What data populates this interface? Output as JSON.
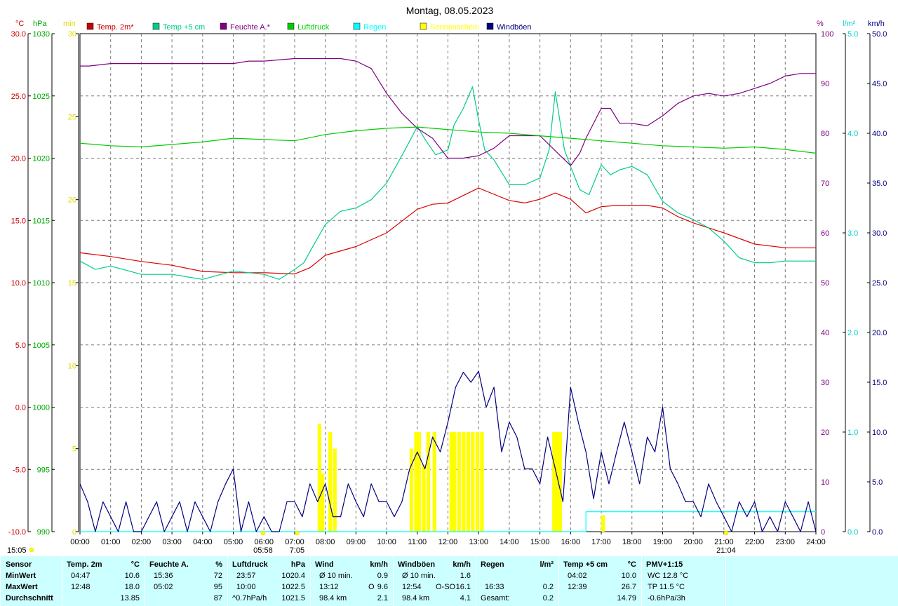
{
  "chart_data": {
    "type": "line",
    "title": "Montag, 08.05.2023",
    "x_axis": {
      "range_hours": [
        0,
        24
      ],
      "tick_labels": [
        "00:00",
        "01:00",
        "02:00",
        "03:00",
        "04:00",
        "05:00",
        "06:00",
        "07:00",
        "08:00",
        "09:00",
        "10:00",
        "11:00",
        "12:00",
        "13:00",
        "14:00",
        "15:00",
        "16:00",
        "17:00",
        "18:00",
        "19:00",
        "20:00",
        "21:00",
        "22:00",
        "23:00",
        "24:00"
      ],
      "annotations": [
        {
          "label": "05:58",
          "hour": 5.97
        },
        {
          "label": "7:05",
          "hour": 7.08
        },
        {
          "label": "21:04",
          "hour": 21.07
        }
      ],
      "sun_left_label": "15:05"
    },
    "axes": {
      "temp": {
        "unit": "°C",
        "range": [
          -10,
          30
        ],
        "ticks": [
          "30.0",
          "25.0",
          "20.0",
          "15.0",
          "10.0",
          "5.0",
          "0.0",
          "-5.0",
          "-10.0"
        ],
        "color": "#cc0000"
      },
      "pressure": {
        "unit": "hPa",
        "range": [
          990,
          1030
        ],
        "ticks": [
          "1030",
          "1025",
          "1020",
          "1015",
          "1010",
          "1005",
          "1000",
          "995",
          "990"
        ],
        "color": "#00aa00"
      },
      "sunshine": {
        "unit": "min",
        "range": [
          0,
          30
        ],
        "ticks": [
          "30",
          "25",
          "20",
          "15",
          "10",
          "5",
          "0"
        ],
        "color": "#dddd00"
      },
      "humidity": {
        "unit": "%",
        "range": [
          0,
          100
        ],
        "ticks": [
          "100",
          "90",
          "80",
          "70",
          "60",
          "50",
          "40",
          "30",
          "20",
          "10",
          "0"
        ],
        "color": "#800080"
      },
      "rain": {
        "unit": "l/m²",
        "range": [
          0,
          5
        ],
        "ticks": [
          "5.0",
          "4.0",
          "3.0",
          "2.0",
          "1.0",
          "0.0"
        ],
        "color": "#00cccc"
      },
      "wind": {
        "unit": "km/h",
        "range": [
          0,
          50
        ],
        "ticks": [
          "50.0",
          "45.0",
          "40.0",
          "35.0",
          "30.0",
          "25.0",
          "20.0",
          "15.0",
          "10.0",
          "5.0",
          "0.0"
        ],
        "color": "#000080"
      }
    },
    "legend": {
      "placement": "top",
      "items": [
        {
          "name": "Temp. 2m*",
          "color": "#cc0000"
        },
        {
          "name": "Temp +5 cm",
          "color": "#00cc88"
        },
        {
          "name": "Feuchte A.*",
          "color": "#800080"
        },
        {
          "name": "Luftdruck",
          "color": "#00cc00"
        },
        {
          "name": "Regen",
          "color": "#00ffff"
        },
        {
          "name": "Sonnenschein",
          "color": "#ffff00"
        },
        {
          "name": "Windböen",
          "color": "#000080"
        }
      ]
    },
    "series": [
      {
        "name": "Temp. 2m*",
        "axis": "temp",
        "color": "#dd0000",
        "x": [
          0,
          1,
          2,
          3,
          4,
          5,
          6,
          7,
          7.5,
          8,
          9,
          10,
          11,
          11.5,
          12,
          12.5,
          13,
          13.5,
          14,
          14.5,
          15,
          15.5,
          16,
          16.5,
          17,
          17.5,
          18,
          18.5,
          19,
          19.5,
          20,
          21,
          22,
          23,
          24
        ],
        "y": [
          12.4,
          12.1,
          11.7,
          11.4,
          10.9,
          10.8,
          10.8,
          10.7,
          11.2,
          12.2,
          12.9,
          14.0,
          15.9,
          16.3,
          16.4,
          17.0,
          17.6,
          17.1,
          16.6,
          16.4,
          16.7,
          17.2,
          16.7,
          15.6,
          16.1,
          16.2,
          16.2,
          16.2,
          16.0,
          15.3,
          14.8,
          14.0,
          13.1,
          12.8,
          12.8
        ]
      },
      {
        "name": "Temp +5 cm",
        "axis": "sunshine",
        "color": "#00cc88",
        "x": [
          0,
          0.5,
          1,
          2,
          3,
          4,
          5,
          6,
          6.5,
          7,
          7.3,
          7.6,
          8,
          8.5,
          9,
          9.5,
          10,
          10.3,
          10.6,
          11,
          11.3,
          11.6,
          12,
          12.2,
          12.5,
          12.8,
          13,
          13.2,
          13.5,
          14,
          14.5,
          15,
          15.3,
          15.5,
          15.8,
          16,
          16.3,
          16.6,
          17,
          17.3,
          17.6,
          18,
          18.5,
          19,
          19.5,
          20,
          20.5,
          21,
          21.5,
          22,
          22.5,
          23,
          24
        ],
        "y": [
          16.3,
          15.8,
          16,
          15.5,
          15.5,
          15.2,
          15.7,
          15.5,
          15.2,
          15.8,
          16.2,
          17.2,
          18.5,
          19.3,
          19.5,
          20,
          21,
          22,
          23,
          24.4,
          23.5,
          22.7,
          23,
          24.5,
          25.5,
          26.8,
          24.8,
          23,
          22.4,
          20.9,
          20.9,
          21.3,
          23,
          26.5,
          23,
          22,
          20.6,
          20.3,
          22.1,
          21.5,
          21.8,
          22,
          21.5,
          19.9,
          19.2,
          18.8,
          18.3,
          17.5,
          16.5,
          16.2,
          16.2,
          16.3,
          16.3
        ]
      },
      {
        "name": "Feuchte A.*",
        "axis": "humidity",
        "color": "#800080",
        "x": [
          0,
          0.3,
          1,
          2,
          3,
          4,
          5,
          5.5,
          6,
          7,
          8,
          8.5,
          9,
          9.5,
          10,
          10.5,
          11,
          11.5,
          12,
          12.5,
          13,
          13.5,
          14,
          14.5,
          15,
          15.5,
          16,
          16.3,
          16.5,
          17,
          17.3,
          17.6,
          18,
          18.5,
          19,
          19.5,
          20,
          20.5,
          21,
          21.5,
          22,
          22.5,
          23,
          23.5,
          24
        ],
        "y": [
          93.5,
          93.5,
          94,
          94,
          94,
          94,
          94,
          94.5,
          94.5,
          95,
          95,
          95,
          94.5,
          93,
          88,
          84,
          81,
          79,
          75,
          75,
          75.5,
          77,
          79.5,
          79.5,
          79.5,
          76.5,
          73.5,
          76,
          79,
          85,
          85,
          82,
          82,
          81.5,
          83.5,
          86,
          87.5,
          88,
          87.5,
          88,
          89,
          90,
          91.5,
          92,
          92
        ]
      },
      {
        "name": "Luftdruck",
        "axis": "pressure",
        "color": "#00cc00",
        "x": [
          0,
          1,
          2,
          3,
          4,
          5,
          6,
          7,
          8,
          9,
          10,
          11,
          12,
          13,
          14,
          15,
          16,
          17,
          18,
          19,
          20,
          21,
          22,
          23,
          24
        ],
        "y": [
          1021.2,
          1021.0,
          1020.9,
          1021.1,
          1021.3,
          1021.6,
          1021.5,
          1021.4,
          1021.9,
          1022.2,
          1022.4,
          1022.5,
          1022.3,
          1022.1,
          1022.0,
          1021.8,
          1021.6,
          1021.4,
          1021.2,
          1021.0,
          1020.9,
          1020.8,
          1020.9,
          1020.7,
          1020.4
        ]
      },
      {
        "name": "Regen",
        "axis": "rain",
        "color": "#00ffff",
        "x": [
          0,
          16.5,
          16.5,
          24
        ],
        "y": [
          0,
          0,
          0.2,
          0.2
        ]
      },
      {
        "name": "Windböen",
        "axis": "wind",
        "color": "#000080",
        "x": [
          0,
          0.25,
          0.5,
          0.75,
          1,
          1.25,
          1.5,
          1.75,
          2,
          2.25,
          2.5,
          2.75,
          3,
          3.25,
          3.5,
          3.75,
          4,
          4.25,
          4.5,
          4.75,
          5,
          5.25,
          5.5,
          5.75,
          6,
          6.25,
          6.5,
          6.75,
          7,
          7.25,
          7.5,
          7.75,
          8,
          8.25,
          8.5,
          8.75,
          9,
          9.25,
          9.5,
          9.75,
          10,
          10.25,
          10.5,
          10.75,
          11,
          11.25,
          11.5,
          11.75,
          12,
          12.25,
          12.5,
          12.75,
          13,
          13.25,
          13.5,
          13.75,
          14,
          14.25,
          14.5,
          14.75,
          15,
          15.25,
          15.5,
          15.75,
          16,
          16.25,
          16.5,
          16.75,
          17,
          17.25,
          17.5,
          17.75,
          18,
          18.25,
          18.5,
          18.75,
          19,
          19.25,
          19.5,
          19.75,
          20,
          20.25,
          20.5,
          20.75,
          21,
          21.25,
          21.5,
          21.75,
          22,
          22.25,
          22.5,
          22.75,
          23,
          23.25,
          23.5,
          23.75,
          24
        ],
        "y": [
          4.8,
          3,
          0,
          3,
          1.5,
          0,
          3,
          0,
          0,
          1.5,
          3,
          0,
          1.5,
          3,
          0,
          3,
          1.5,
          0,
          3,
          4.8,
          6.3,
          0,
          3,
          0,
          1.5,
          0,
          0,
          3,
          3,
          1.5,
          4.8,
          3,
          4.8,
          1.5,
          1.5,
          4.8,
          3,
          1.5,
          4.8,
          3,
          3,
          1.5,
          3,
          6.3,
          8,
          6.3,
          9.5,
          8,
          11,
          14.5,
          16,
          15,
          16.1,
          12.5,
          14.5,
          8,
          11,
          9.5,
          6.3,
          6.3,
          4.8,
          9.5,
          6.3,
          3,
          14.5,
          11,
          8,
          3.3,
          8,
          4.8,
          8,
          11,
          8,
          4.8,
          9.5,
          8,
          12.5,
          6.3,
          4.8,
          3,
          3,
          1.5,
          4.8,
          3,
          1.5,
          0,
          3,
          1.5,
          3,
          0,
          1.5,
          0,
          3,
          1.5,
          0,
          3,
          0
        ]
      }
    ],
    "sunshine_minutes": {
      "axis": "sunshine",
      "color": "#ffff00",
      "x": [
        7.75,
        7.85,
        8.1,
        8.25,
        10.75,
        10.9,
        11.0,
        11.15,
        11.3,
        11.5,
        12.05,
        12.15,
        12.3,
        12.45,
        12.6,
        12.75,
        12.9,
        13.05,
        15.4,
        15.5,
        15.6,
        17.0
      ],
      "y": [
        6.5,
        3.5,
        6,
        5,
        5,
        6,
        6,
        4,
        6,
        6,
        6,
        6,
        6,
        6,
        6,
        6,
        6,
        6,
        6,
        6,
        6,
        1
      ]
    },
    "grid": true
  },
  "stats": {
    "labels": {
      "sensor": "Sensor",
      "min": "MinWert",
      "max": "MaxWert",
      "avg": "Durchschnitt"
    },
    "temp2m": {
      "title": "Temp. 2m",
      "unit": "°C",
      "min_time": "04:47",
      "min_val": "10.6",
      "max_time": "12:48",
      "max_val": "18.0",
      "avg_val": "13.85"
    },
    "humidity": {
      "title": "Feuchte A.",
      "unit": "%",
      "min_time": "15:36",
      "min_val": "72",
      "max_time": "05:02",
      "max_val": "95",
      "avg_val": "87"
    },
    "pressure": {
      "title": "Luftdruck",
      "unit": "hPa",
      "min_time": "23:57",
      "min_val": "1020.4",
      "max_time": "10:00",
      "max_val": "1022.5",
      "avg_time": "^0.7hPa/h",
      "avg_val": "1021.5"
    },
    "wind": {
      "title": "Wind",
      "unit": "km/h",
      "min_time": "Ø 10 min.",
      "min_val": "0.9",
      "max_time": "13:12",
      "max_mid": "O",
      "max_val": "9.6",
      "avg_time": "98.4 km",
      "avg_val": "2.1"
    },
    "gust": {
      "title": "Windböen",
      "unit": "km/h",
      "min_time": "Ø 10 min.",
      "min_val": "1.6",
      "max_time": "12:54",
      "max_mid": "O-SO",
      "max_val": "16.1",
      "avg_time": "98.4 km",
      "avg_val": "4.1"
    },
    "rain": {
      "title": "Regen",
      "unit": "l/m²",
      "max_time": "16:33",
      "max_val": "0.2",
      "avg_time": "Gesamt:",
      "avg_val": "0.2"
    },
    "temp5": {
      "title": "Temp +5 cm",
      "unit": "°C",
      "min_time": "04:02",
      "min_val": "10.0",
      "max_time": "12:39",
      "max_val": "26.7",
      "avg_val": "14.79"
    },
    "pmv": {
      "title": "PMV+1:15",
      "line1": "WC 12.8 °C",
      "line2": "TP 11.5 °C",
      "line3": "-0.6hPa/3h"
    }
  }
}
